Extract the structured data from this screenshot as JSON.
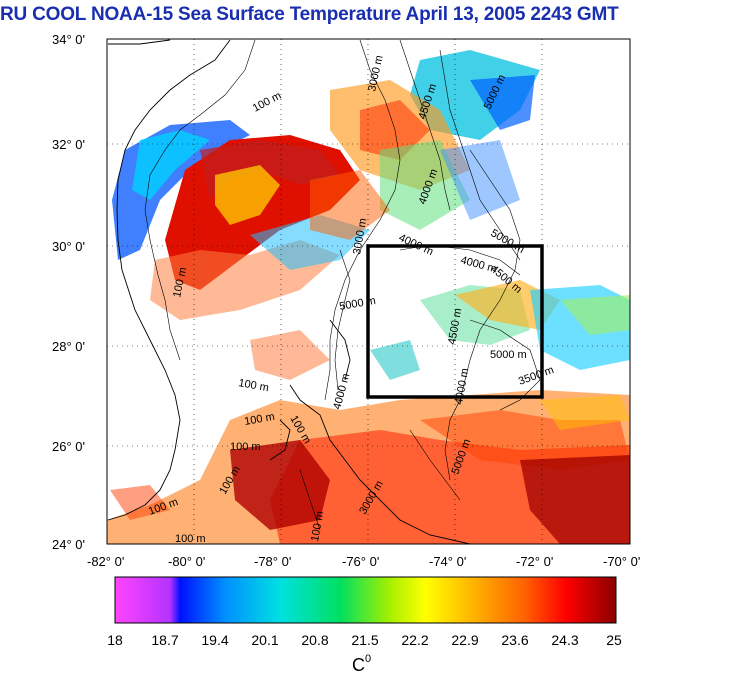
{
  "title": "RU COOL  NOAA-15 Sea Surface Temperature April 13, 2005 2243 GMT",
  "lat_labels": [
    "34° 0'",
    "32° 0'",
    "30° 0'",
    "28° 0'",
    "26° 0'",
    "24° 0'"
  ],
  "lon_labels": [
    "-82° 0'",
    "-80° 0'",
    "-78° 0'",
    "-76° 0'",
    "-74° 0'",
    "-72° 0'",
    "-70° 0'"
  ],
  "contour_labels": {
    "m100": "100 m",
    "m3000": "3000 m",
    "m4000": "4000 m",
    "m4500": "4500 m",
    "m5000": "5000 m",
    "m3500": "3500 m"
  },
  "colorbar": {
    "ticks": [
      "18",
      "18.7",
      "19.4",
      "20.1",
      "20.8",
      "21.5",
      "22.2",
      "22.9",
      "23.6",
      "24.3",
      "25"
    ],
    "unit": "C",
    "unit_sup": "0",
    "colors": [
      "#ff44ff",
      "#b433ff",
      "#0010ff",
      "#0090ff",
      "#00e0e0",
      "#00e060",
      "#a8f000",
      "#ffff00",
      "#ffb000",
      "#ff6000",
      "#ff0000",
      "#c00000",
      "#8b0000"
    ]
  },
  "map": {
    "lat_range": [
      24,
      34
    ],
    "lon_range": [
      -82,
      -70
    ],
    "box": {
      "lon": [
        -76,
        -72
      ],
      "lat": [
        27,
        30
      ]
    }
  }
}
